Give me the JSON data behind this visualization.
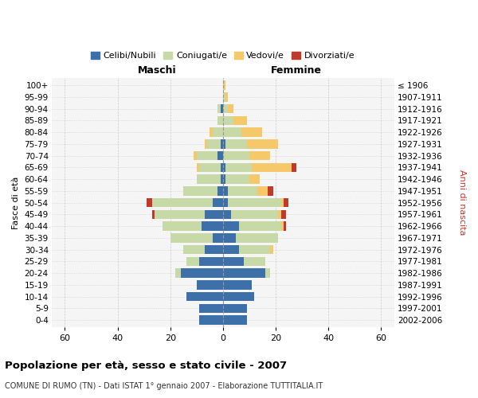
{
  "age_groups": [
    "0-4",
    "5-9",
    "10-14",
    "15-19",
    "20-24",
    "25-29",
    "30-34",
    "35-39",
    "40-44",
    "45-49",
    "50-54",
    "55-59",
    "60-64",
    "65-69",
    "70-74",
    "75-79",
    "80-84",
    "85-89",
    "90-94",
    "95-99",
    "100+"
  ],
  "birth_years": [
    "2002-2006",
    "1997-2001",
    "1992-1996",
    "1987-1991",
    "1982-1986",
    "1977-1981",
    "1972-1976",
    "1967-1971",
    "1962-1966",
    "1957-1961",
    "1952-1956",
    "1947-1951",
    "1942-1946",
    "1937-1941",
    "1932-1936",
    "1927-1931",
    "1922-1926",
    "1917-1921",
    "1912-1916",
    "1907-1911",
    "≤ 1906"
  ],
  "colors": {
    "celibi": "#3d6fa8",
    "coniugati": "#c8d9a8",
    "vedovi": "#f5c869",
    "divorziati": "#c0392b"
  },
  "males": {
    "celibi": [
      9,
      9,
      14,
      10,
      16,
      9,
      7,
      4,
      8,
      7,
      4,
      2,
      1,
      1,
      2,
      1,
      0,
      0,
      1,
      0,
      0
    ],
    "coniugati": [
      0,
      0,
      0,
      0,
      2,
      5,
      8,
      16,
      15,
      19,
      23,
      13,
      9,
      8,
      8,
      5,
      4,
      2,
      1,
      0,
      0
    ],
    "vedovi": [
      0,
      0,
      0,
      0,
      0,
      0,
      0,
      0,
      0,
      0,
      0,
      0,
      0,
      1,
      1,
      1,
      1,
      0,
      0,
      0,
      0
    ],
    "divorziati": [
      0,
      0,
      0,
      0,
      0,
      0,
      0,
      0,
      0,
      1,
      2,
      0,
      0,
      0,
      0,
      0,
      0,
      0,
      0,
      0,
      0
    ]
  },
  "females": {
    "celibi": [
      9,
      9,
      12,
      11,
      16,
      8,
      6,
      5,
      6,
      3,
      2,
      2,
      1,
      1,
      0,
      1,
      0,
      0,
      0,
      0,
      0
    ],
    "coniugati": [
      0,
      0,
      0,
      0,
      2,
      8,
      12,
      16,
      16,
      18,
      20,
      11,
      9,
      10,
      10,
      8,
      7,
      4,
      2,
      1,
      0
    ],
    "vedovi": [
      0,
      0,
      0,
      0,
      0,
      0,
      1,
      0,
      1,
      1,
      1,
      4,
      4,
      15,
      8,
      12,
      8,
      5,
      2,
      1,
      1
    ],
    "divorziati": [
      0,
      0,
      0,
      0,
      0,
      0,
      0,
      0,
      1,
      2,
      2,
      2,
      0,
      2,
      0,
      0,
      0,
      0,
      0,
      0,
      0
    ]
  },
  "xlim": 65,
  "title": "Popolazione per età, sesso e stato civile - 2007",
  "subtitle": "COMUNE DI RUMO (TN) - Dati ISTAT 1° gennaio 2007 - Elaborazione TUTTITALIA.IT",
  "ylabel_left": "Fasce di età",
  "ylabel_right": "Anni di nascita",
  "xlabel_left": "Maschi",
  "xlabel_right": "Femmine",
  "bg_color": "#f5f5f5",
  "grid_color": "#cccccc",
  "legend_labels": [
    "Celibi/Nubili",
    "Coniugati/e",
    "Vedovi/e",
    "Divorziati/e"
  ]
}
